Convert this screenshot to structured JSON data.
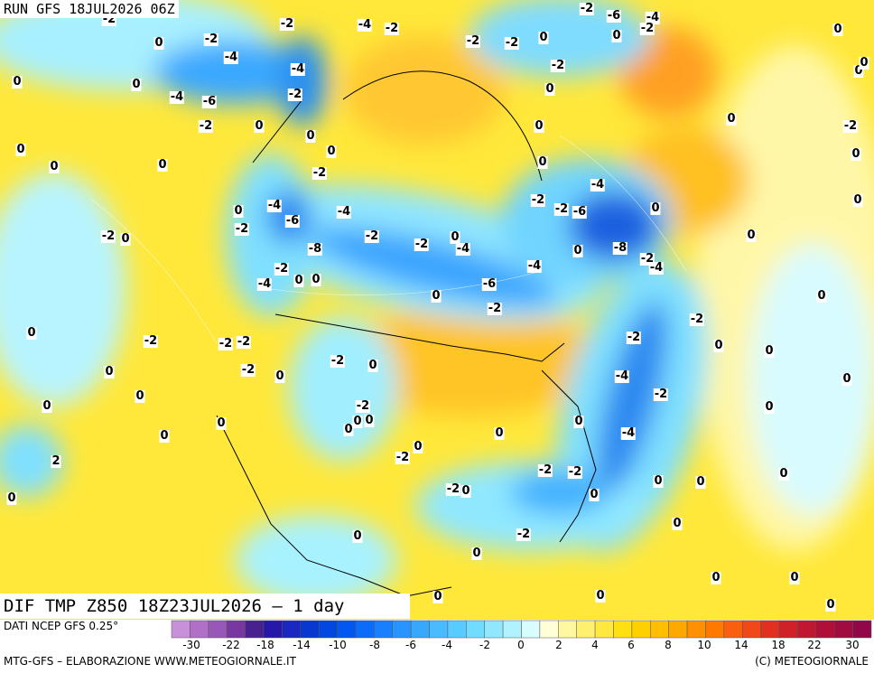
{
  "header": {
    "run": "RUN GFS 18JUL2026 06Z"
  },
  "map": {
    "title": "DIF TMP Z850 18Z23JUL2026 – 1 day",
    "contour_labels": [
      "-2",
      "0",
      "-2",
      "-4",
      "-2",
      "-4",
      "-2",
      "-4",
      "-2",
      "-4",
      "-6",
      "-2",
      "0",
      "0",
      "0",
      "0",
      "0",
      "0",
      "0",
      "-2",
      "0",
      "-4",
      "-6",
      "-4",
      "-2",
      "0",
      "-2",
      "0",
      "-8",
      "-2",
      "-2",
      "-4",
      "0",
      "-4",
      "-6",
      "-2",
      "-4",
      "0",
      "0",
      "0",
      "-2",
      "-2",
      "-2",
      "-6",
      "-4",
      "0",
      "0",
      "-8",
      "-2",
      "-4",
      "0",
      "0",
      "-2",
      "-2",
      "0",
      "0",
      "-4",
      "-2",
      "0",
      "0",
      "-4",
      "0",
      "0",
      "-2",
      "-2",
      "0",
      "0",
      "0",
      "0",
      "0",
      "-2",
      "0",
      "0",
      "0",
      "0",
      "0",
      "0",
      "0",
      "-2",
      "-2",
      "-2",
      "0",
      "0",
      "0",
      "0",
      "0",
      "0",
      "-2",
      "0",
      "-2",
      "0",
      "-2",
      "0",
      "0",
      "0",
      "0",
      "-2",
      "-2",
      "0",
      "2",
      "0",
      "-2",
      "-6",
      "-4",
      "-2",
      "0",
      "-2",
      "-2",
      "0",
      "-2",
      "0",
      "0",
      "0",
      "0",
      "0",
      "-2",
      "0",
      "0",
      "0",
      "0"
    ]
  },
  "legend": {
    "source": "DATI NCEP GFS 0.25°",
    "ticks": [
      "-30",
      "-22",
      "-18",
      "-14",
      "-10",
      "-8",
      "-6",
      "-4",
      "-2",
      "0",
      "2",
      "4",
      "6",
      "8",
      "10",
      "14",
      "18",
      "22",
      "30"
    ]
  },
  "footer": {
    "left": "MTG-GFS – ELABORAZIONE WWW.METEOGIORNALE.IT",
    "right": "(C) METEOGIORNALE"
  }
}
